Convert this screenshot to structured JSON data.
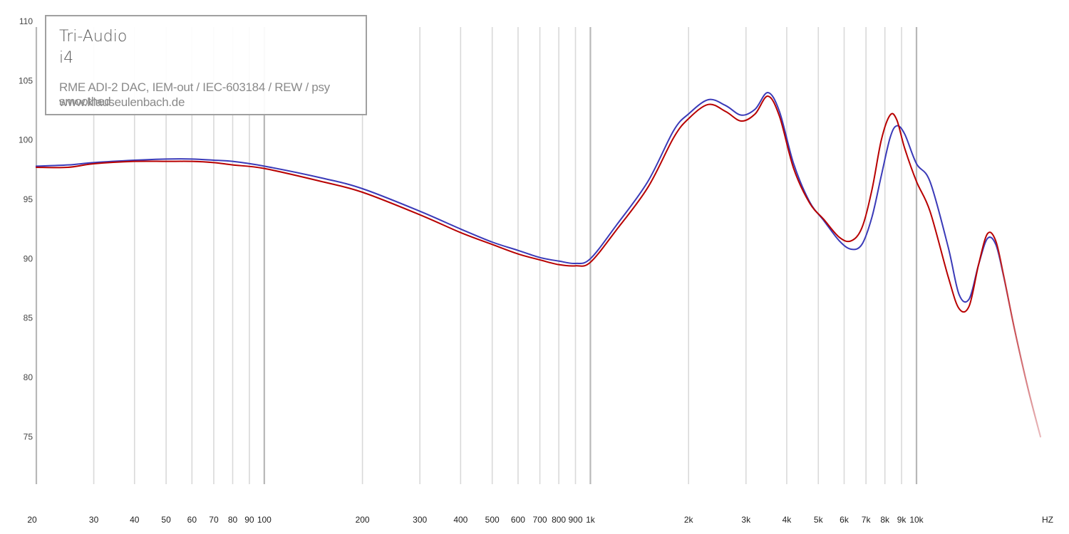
{
  "chart_data": {
    "type": "line",
    "xscale": "log",
    "xlim": [
      20,
      24000
    ],
    "ylim": [
      71,
      110
    ],
    "grid": true,
    "xlabel": "HZ",
    "y_ticks": [
      75,
      80,
      85,
      90,
      95,
      100,
      105,
      110
    ],
    "x_ticks": [
      {
        "f": 20,
        "label": "20"
      },
      {
        "f": 30,
        "label": "30"
      },
      {
        "f": 40,
        "label": "40"
      },
      {
        "f": 50,
        "label": "50"
      },
      {
        "f": 60,
        "label": "60"
      },
      {
        "f": 70,
        "label": "70"
      },
      {
        "f": 80,
        "label": "80"
      },
      {
        "f": 90,
        "label": "90"
      },
      {
        "f": 100,
        "label": "100"
      },
      {
        "f": 200,
        "label": "200"
      },
      {
        "f": 300,
        "label": "300"
      },
      {
        "f": 400,
        "label": "400"
      },
      {
        "f": 500,
        "label": "500"
      },
      {
        "f": 600,
        "label": "600"
      },
      {
        "f": 700,
        "label": "700"
      },
      {
        "f": 800,
        "label": "800"
      },
      {
        "f": 900,
        "label": "900"
      },
      {
        "f": 1000,
        "label": "1k"
      },
      {
        "f": 2000,
        "label": "2k"
      },
      {
        "f": 3000,
        "label": "3k"
      },
      {
        "f": 4000,
        "label": "4k"
      },
      {
        "f": 5000,
        "label": "5k"
      },
      {
        "f": 6000,
        "label": "6k"
      },
      {
        "f": 7000,
        "label": "7k"
      },
      {
        "f": 8000,
        "label": "8k"
      },
      {
        "f": 9000,
        "label": "9k"
      },
      {
        "f": 10000,
        "label": "10k"
      }
    ],
    "series": [
      {
        "color": "#3a3ab8",
        "x": [
          20,
          25,
          30,
          40,
          50,
          60,
          70,
          80,
          100,
          150,
          200,
          300,
          400,
          500,
          600,
          700,
          800,
          900,
          1000,
          1200,
          1500,
          1800,
          2000,
          2300,
          2600,
          2900,
          3200,
          3500,
          3800,
          4200,
          4700,
          5200,
          5800,
          6300,
          6800,
          7300,
          7800,
          8300,
          8700,
          9200,
          10000,
          11000,
          12500,
          13500,
          14500,
          15500,
          16500,
          17500,
          18500,
          20000,
          22000,
          24000
        ],
        "y": [
          97.8,
          97.9,
          98.1,
          98.3,
          98.4,
          98.4,
          98.3,
          98.2,
          97.8,
          96.8,
          95.9,
          94.0,
          92.5,
          91.4,
          90.7,
          90.1,
          89.8,
          89.6,
          90.0,
          92.8,
          96.5,
          100.8,
          102.2,
          103.4,
          102.9,
          102.1,
          102.6,
          104.0,
          102.4,
          98.0,
          94.8,
          93.2,
          91.5,
          90.8,
          91.2,
          93.5,
          97.0,
          100.2,
          101.2,
          100.5,
          98.0,
          96.5,
          91.0,
          87.0,
          86.6,
          89.5,
          91.7,
          91.2,
          88.5,
          84.0,
          79.0,
          75.0
        ]
      },
      {
        "color": "#b80000",
        "x": [
          20,
          25,
          30,
          40,
          50,
          60,
          70,
          80,
          100,
          150,
          200,
          300,
          400,
          500,
          600,
          700,
          800,
          900,
          1000,
          1200,
          1500,
          1800,
          2000,
          2300,
          2600,
          2900,
          3200,
          3500,
          3800,
          4200,
          4700,
          5200,
          5800,
          6300,
          6800,
          7300,
          7800,
          8300,
          8700,
          9200,
          10000,
          11000,
          12500,
          13500,
          14500,
          15500,
          16500,
          17500,
          18500,
          20000,
          22000,
          24000
        ],
        "y": [
          97.7,
          97.7,
          98.0,
          98.2,
          98.2,
          98.2,
          98.1,
          97.9,
          97.6,
          96.5,
          95.6,
          93.7,
          92.2,
          91.2,
          90.4,
          89.9,
          89.5,
          89.4,
          89.7,
          92.4,
          96.0,
          100.2,
          101.8,
          103.0,
          102.4,
          101.6,
          102.2,
          103.7,
          102.0,
          97.6,
          94.7,
          93.3,
          91.8,
          91.5,
          92.6,
          95.8,
          100.0,
          102.1,
          101.7,
          99.3,
          96.5,
          94.0,
          88.5,
          85.8,
          86.0,
          89.5,
          92.1,
          91.5,
          88.6,
          84.0,
          79.0,
          75.0
        ]
      }
    ]
  },
  "legend": {
    "brand": "Tri-Audio",
    "model": "i4",
    "setup": "RME ADI-2 DAC, IEM-out / IEC-603184 / REW / psy smoothed",
    "site": "www.klauseulenbach.de"
  }
}
